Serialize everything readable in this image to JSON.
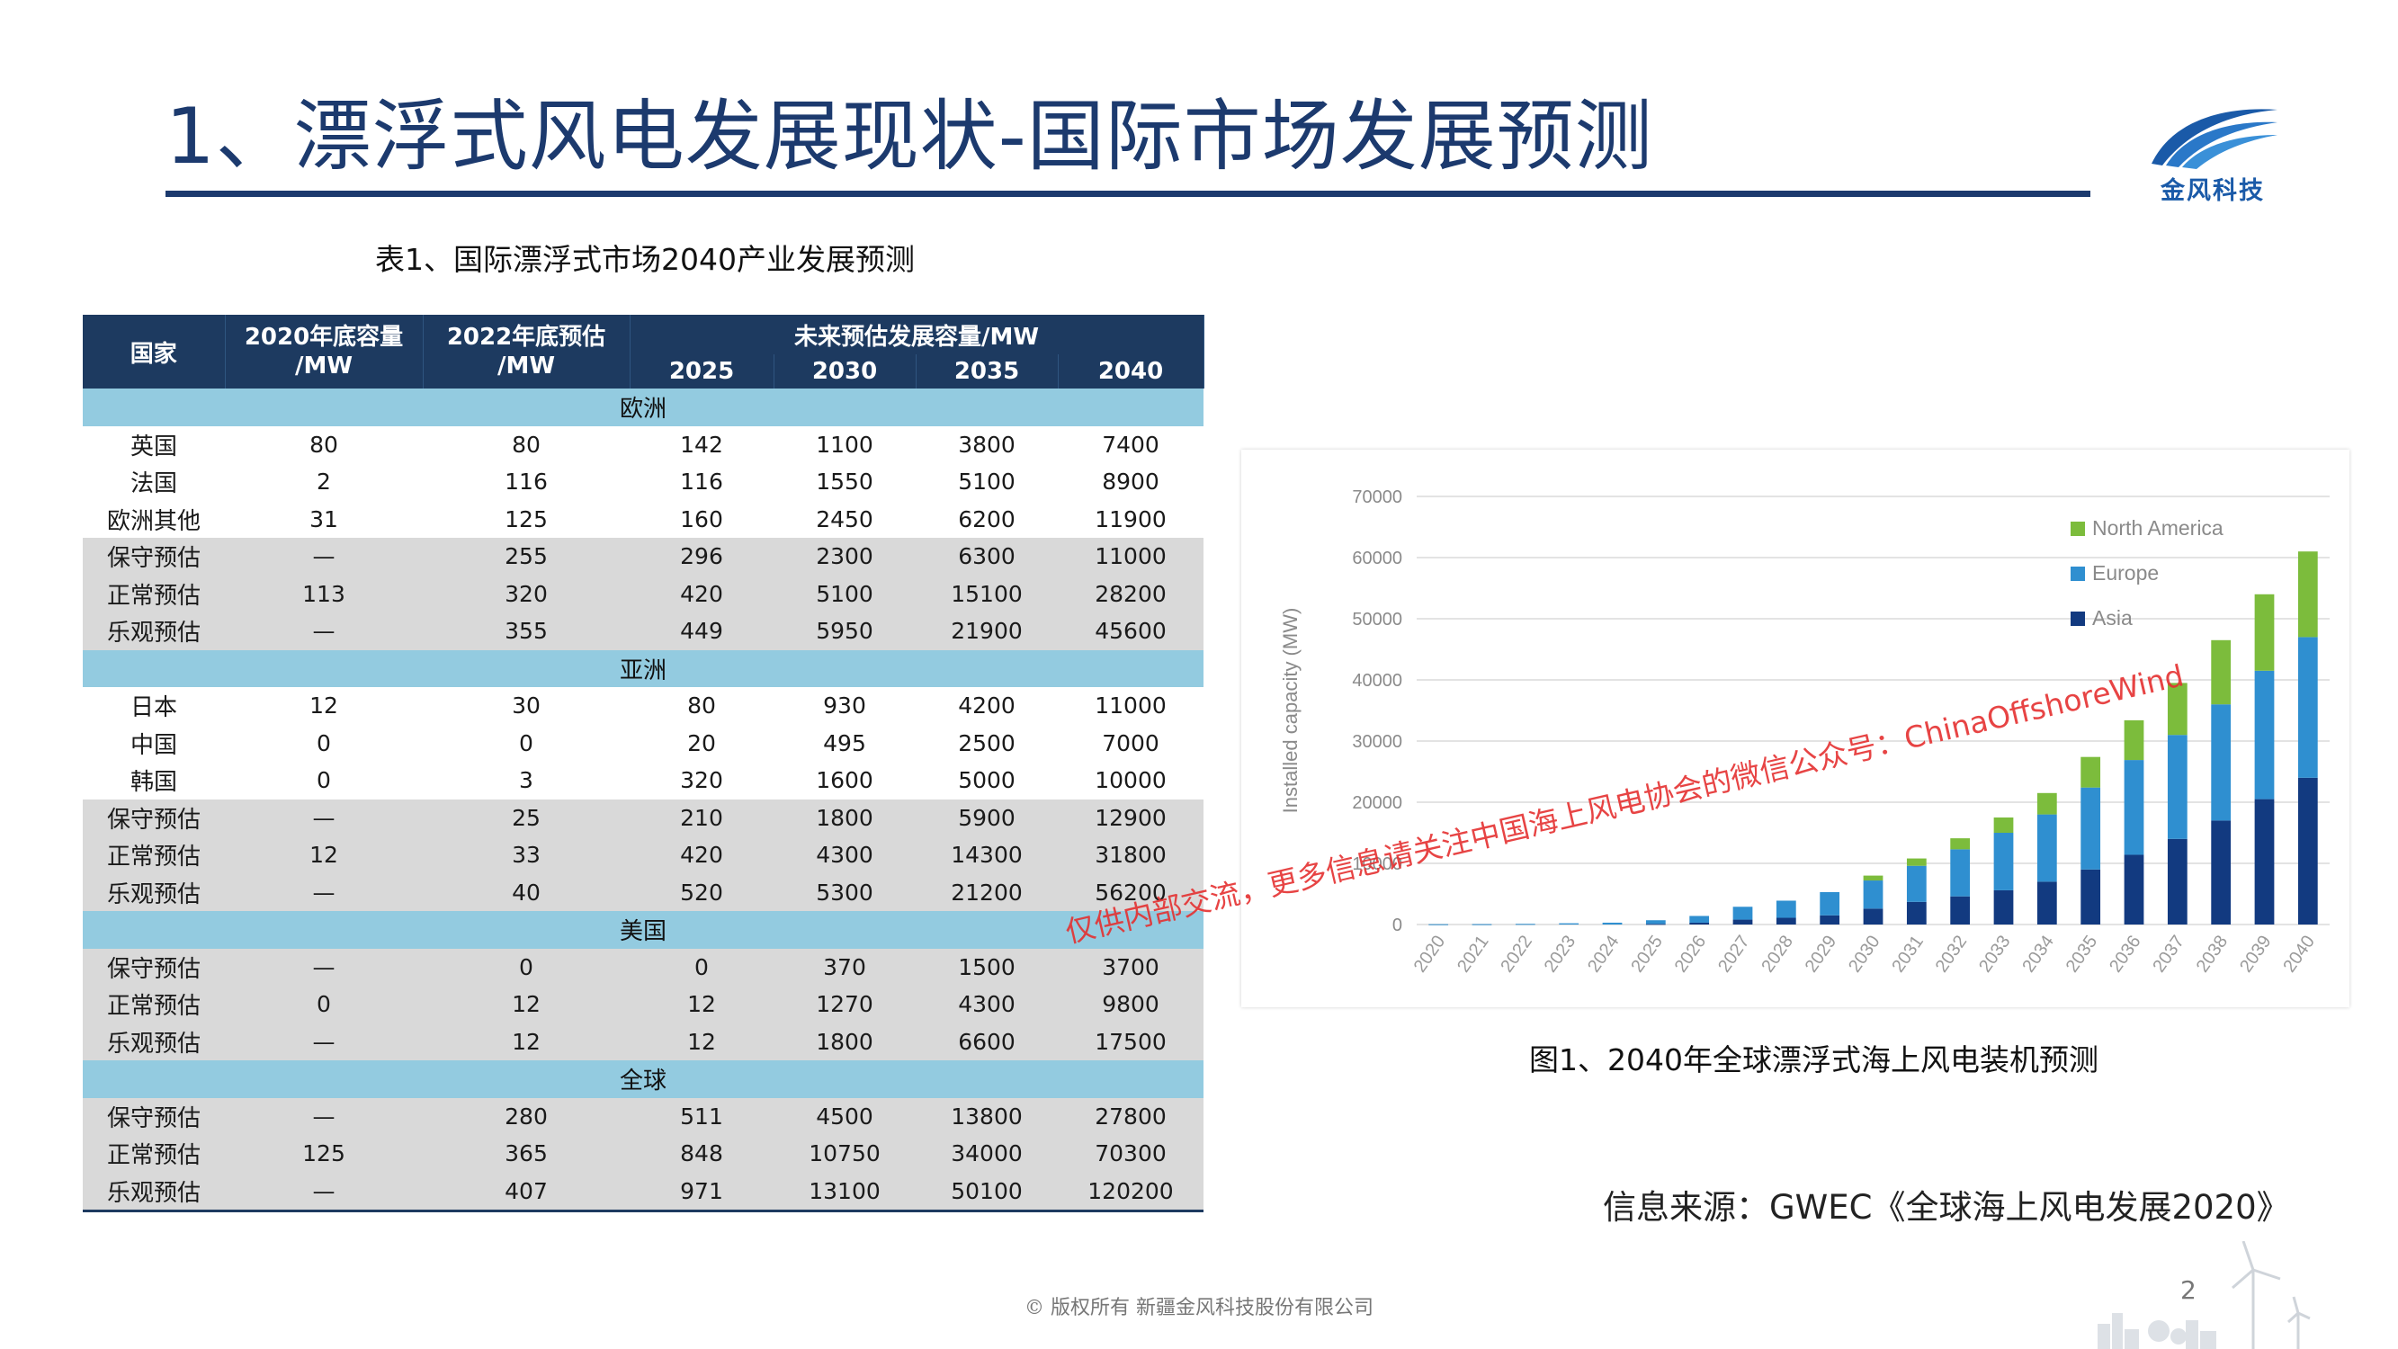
{
  "title": "1、漂浮式风电发展现状-国际市场发展预测",
  "logo_text": "金风科技",
  "table": {
    "caption": "表1、国际漂浮式市场2040产业发展预测",
    "headers": {
      "country": "国家",
      "y2020_line1": "2020年底容量",
      "y2020_line2": "/MW",
      "y2022_line1": "2022年底预估",
      "y2022_line2": "/MW",
      "future": "未来预估发展容量/MW",
      "years": [
        "2025",
        "2030",
        "2035",
        "2040"
      ]
    },
    "sections": [
      {
        "region": "欧洲",
        "rows": [
          {
            "name": "英国",
            "v2020": "80",
            "v2022": "80",
            "v2025": "142",
            "v2030": "1100",
            "v2035": "3800",
            "v2040": "7400"
          },
          {
            "name": "法国",
            "v2020": "2",
            "v2022": "116",
            "v2025": "116",
            "v2030": "1550",
            "v2035": "5100",
            "v2040": "8900"
          },
          {
            "name": "欧洲其他",
            "v2020": "31",
            "v2022": "125",
            "v2025": "160",
            "v2030": "2450",
            "v2035": "6200",
            "v2040": "11900"
          },
          {
            "name": "保守预估",
            "v2020": "—",
            "v2022": "255",
            "v2025": "296",
            "v2030": "2300",
            "v2035": "6300",
            "v2040": "11000"
          },
          {
            "name": "正常预估",
            "v2020": "113",
            "v2022": "320",
            "v2025": "420",
            "v2030": "5100",
            "v2035": "15100",
            "v2040": "28200"
          },
          {
            "name": "乐观预估",
            "v2020": "—",
            "v2022": "355",
            "v2025": "449",
            "v2030": "5950",
            "v2035": "21900",
            "v2040": "45600"
          }
        ]
      },
      {
        "region": "亚洲",
        "rows": [
          {
            "name": "日本",
            "v2020": "12",
            "v2022": "30",
            "v2025": "80",
            "v2030": "930",
            "v2035": "4200",
            "v2040": "11000"
          },
          {
            "name": "中国",
            "v2020": "0",
            "v2022": "0",
            "v2025": "20",
            "v2030": "495",
            "v2035": "2500",
            "v2040": "7000"
          },
          {
            "name": "韩国",
            "v2020": "0",
            "v2022": "3",
            "v2025": "320",
            "v2030": "1600",
            "v2035": "5000",
            "v2040": "10000"
          },
          {
            "name": "保守预估",
            "v2020": "—",
            "v2022": "25",
            "v2025": "210",
            "v2030": "1800",
            "v2035": "5900",
            "v2040": "12900"
          },
          {
            "name": "正常预估",
            "v2020": "12",
            "v2022": "33",
            "v2025": "420",
            "v2030": "4300",
            "v2035": "14300",
            "v2040": "31800"
          },
          {
            "name": "乐观预估",
            "v2020": "—",
            "v2022": "40",
            "v2025": "520",
            "v2030": "5300",
            "v2035": "21200",
            "v2040": "56200"
          }
        ]
      },
      {
        "region": "美国",
        "rows": [
          {
            "name": "保守预估",
            "v2020": "—",
            "v2022": "0",
            "v2025": "0",
            "v2030": "370",
            "v2035": "1500",
            "v2040": "3700"
          },
          {
            "name": "正常预估",
            "v2020": "0",
            "v2022": "12",
            "v2025": "12",
            "v2030": "1270",
            "v2035": "4300",
            "v2040": "9800"
          },
          {
            "name": "乐观预估",
            "v2020": "—",
            "v2022": "12",
            "v2025": "12",
            "v2030": "1800",
            "v2035": "6600",
            "v2040": "17500"
          }
        ]
      },
      {
        "region": "全球",
        "rows": [
          {
            "name": "保守预估",
            "v2020": "—",
            "v2022": "280",
            "v2025": "511",
            "v2030": "4500",
            "v2035": "13800",
            "v2040": "27800"
          },
          {
            "name": "正常预估",
            "v2020": "125",
            "v2022": "365",
            "v2025": "848",
            "v2030": "10750",
            "v2035": "34000",
            "v2040": "70300"
          },
          {
            "name": "乐观预估",
            "v2020": "—",
            "v2022": "407",
            "v2025": "971",
            "v2030": "13100",
            "v2035": "50100",
            "v2040": "120200"
          }
        ]
      }
    ]
  },
  "chart_data": {
    "type": "bar",
    "stacked": true,
    "ylabel": "Installed capacity (MW)",
    "ylim": [
      0,
      70000
    ],
    "yticks": [
      "0",
      "10000",
      "20000",
      "30000",
      "40000",
      "50000",
      "60000",
      "70000"
    ],
    "grid": true,
    "legend_position": "top-right",
    "categories": [
      "2020",
      "2021",
      "2022",
      "2023",
      "2024",
      "2025",
      "2026",
      "2027",
      "2028",
      "2029",
      "2030",
      "2031",
      "2032",
      "2033",
      "2034",
      "2035",
      "2036",
      "2037",
      "2038",
      "2039",
      "2040"
    ],
    "series": [
      {
        "name": "Asia",
        "color": "#123a80",
        "values": [
          0,
          0,
          0,
          0,
          0,
          100,
          300,
          800,
          1100,
          1500,
          2600,
          3700,
          4600,
          5600,
          7000,
          9000,
          11400,
          14000,
          17000,
          20500,
          24000
        ]
      },
      {
        "name": "Europe",
        "color": "#2f8fd0",
        "values": [
          50,
          60,
          100,
          200,
          300,
          600,
          1100,
          2100,
          2800,
          3800,
          4600,
          5900,
          7700,
          9400,
          11000,
          13400,
          15500,
          17000,
          19000,
          21000,
          23000
        ]
      },
      {
        "name": "North America",
        "color": "#7cbc3c",
        "values": [
          0,
          0,
          0,
          0,
          0,
          0,
          0,
          0,
          0,
          0,
          800,
          1200,
          1800,
          2500,
          3500,
          5000,
          6500,
          8500,
          10500,
          12500,
          14000
        ]
      }
    ],
    "watermark": "仅供内部交流，更多信息请关注中国海上风电协会的微信公众号：ChinaOffshoreWind"
  },
  "chart_caption": "图1、2040年全球漂浮式海上风电装机预测",
  "source_text": "信息来源：GWEC《全球海上风电发展2020》",
  "copyright": "© 版权所有  新疆金风科技股份有限公司",
  "page_number": "2"
}
